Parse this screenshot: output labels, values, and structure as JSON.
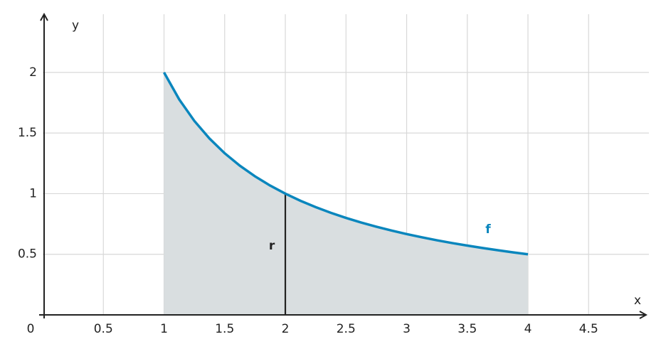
{
  "chart_data": {
    "type": "area",
    "x_label": "x",
    "y_label": "y",
    "origin_label": "0",
    "x": [
      1,
      1.125,
      1.25,
      1.375,
      1.5,
      1.625,
      1.75,
      1.875,
      2,
      2.125,
      2.25,
      2.375,
      2.5,
      2.625,
      2.75,
      2.875,
      3,
      3.125,
      3.25,
      3.375,
      3.5,
      3.625,
      3.75,
      3.875,
      4
    ],
    "series": [
      {
        "name": "f",
        "color": "#0a86bd",
        "values": [
          2,
          1.777778,
          1.6,
          1.454545,
          1.333333,
          1.230769,
          1.142857,
          1.066667,
          1,
          0.941176,
          0.888889,
          0.842105,
          0.8,
          0.761905,
          0.727273,
          0.695652,
          0.666667,
          0.64,
          0.615385,
          0.592593,
          0.571429,
          0.551724,
          0.533333,
          0.516129,
          0.5
        ]
      }
    ],
    "fill_color": "#d9dee0",
    "segment_label": "r",
    "xlim": [
      0,
      4.95
    ],
    "ylim": [
      0,
      2.48
    ],
    "xticks": [
      0.5,
      1,
      1.5,
      2,
      2.5,
      3,
      3.5,
      4,
      4.5
    ],
    "yticks": [
      0.5,
      1,
      1.5,
      2
    ],
    "grid": true
  }
}
